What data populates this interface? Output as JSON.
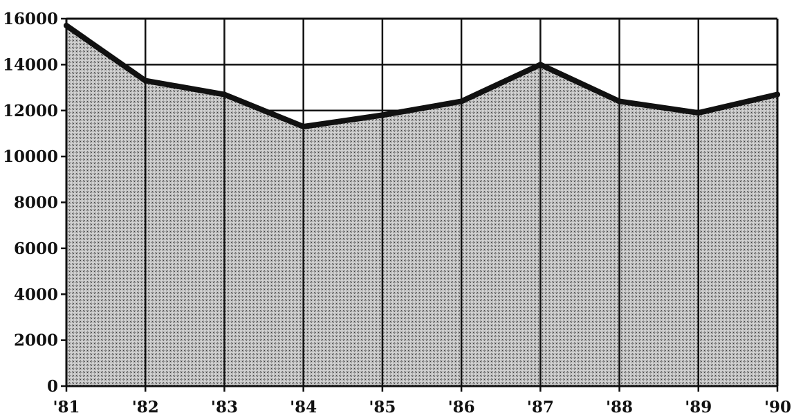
{
  "chart_data": {
    "type": "area",
    "x": [
      "'81",
      "'82",
      "'83",
      "'84",
      "'85",
      "'86",
      "'87",
      "'88",
      "'89",
      "'90"
    ],
    "series": [
      {
        "values": [
          15700,
          13300,
          12700,
          11300,
          11800,
          12400,
          14000,
          12400,
          11900,
          12700
        ]
      }
    ],
    "y_ticks": [
      "0",
      "2000",
      "4000",
      "6000",
      "8000",
      "10000",
      "12000",
      "14000",
      "16000"
    ],
    "ylim": [
      0,
      16000
    ],
    "title": "",
    "xlabel": "",
    "ylabel": "",
    "grid": true,
    "colors": {
      "line": "#111111",
      "fill_pattern": "stipple-gray"
    }
  }
}
